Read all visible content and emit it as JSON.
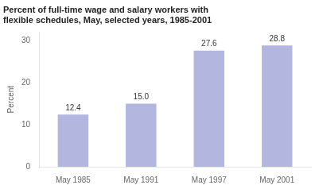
{
  "chart_data": {
    "type": "bar",
    "title": "Percent of full-time wage and salary workers with\nflexible schedules, May, selected years, 1985-2001",
    "ylabel": "Percent",
    "categories": [
      "May 1985",
      "May 1991",
      "May 1997",
      "May 2001"
    ],
    "values": [
      12.4,
      15.0,
      27.6,
      28.8
    ],
    "value_labels": [
      "12.4",
      "15.0",
      "27.6",
      "28.8"
    ],
    "data_labels": true,
    "color": "#b3b7e0",
    "ylim": [
      0,
      32
    ],
    "yticks": [
      0,
      10,
      20,
      30
    ],
    "grid": false
  }
}
